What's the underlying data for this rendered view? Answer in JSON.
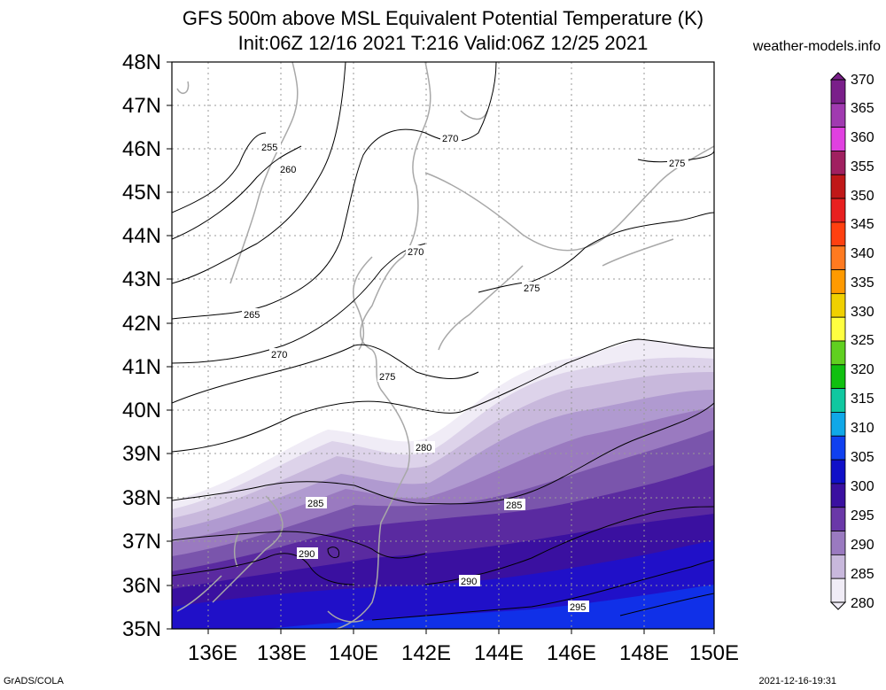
{
  "title": {
    "line1": "GFS 500m above MSL Equivalent Potential Temperature (K)",
    "line2": "Init:06Z 12/16 2021 T:216 Valid:06Z 12/25 2021"
  },
  "site": "weather-models.info",
  "footer": {
    "left": "GrADS/COLA",
    "right": "2021-12-16-19:31"
  },
  "map": {
    "lat_labels": [
      "48N",
      "47N",
      "46N",
      "45N",
      "44N",
      "43N",
      "42N",
      "41N",
      "40N",
      "39N",
      "38N",
      "37N",
      "36N",
      "35N"
    ],
    "lon_labels": [
      "136E",
      "138E",
      "140E",
      "142E",
      "144E",
      "146E",
      "148E",
      "150E"
    ],
    "contour_labels": [
      "255",
      "260",
      "265",
      "270",
      "270",
      "270",
      "275",
      "275",
      "275",
      "280",
      "285",
      "285",
      "290",
      "290",
      "295"
    ]
  },
  "colorbar": {
    "labels": [
      "370",
      "365",
      "360",
      "355",
      "350",
      "345",
      "340",
      "335",
      "330",
      "325",
      "320",
      "315",
      "310",
      "305",
      "300",
      "295",
      "290",
      "285",
      "280"
    ],
    "colors": [
      "#7a1f8a",
      "#a03ab0",
      "#e040e0",
      "#a02060",
      "#c01818",
      "#e82020",
      "#ff4010",
      "#ff7a20",
      "#ff9a00",
      "#f0d000",
      "#ffff40",
      "#60d020",
      "#10c010",
      "#10c8a0",
      "#10a8e8",
      "#1040f0",
      "#1010c8",
      "#3a10a0",
      "#6a38a8",
      "#9a7ac0",
      "#c8b8dc",
      "#f0ecf6"
    ]
  }
}
